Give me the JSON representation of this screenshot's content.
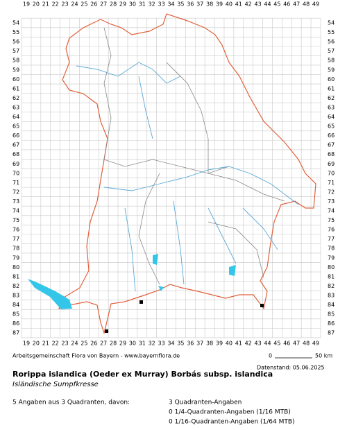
{
  "map": {
    "columns": [
      19,
      20,
      21,
      22,
      23,
      24,
      25,
      26,
      27,
      28,
      29,
      30,
      31,
      32,
      33,
      34,
      35,
      36,
      37,
      38,
      39,
      40,
      41,
      42,
      43,
      44,
      45,
      46,
      47,
      48,
      49
    ],
    "rows": [
      54,
      55,
      56,
      57,
      58,
      59,
      60,
      61,
      62,
      63,
      64,
      65,
      66,
      67,
      68,
      69,
      70,
      71,
      72,
      73,
      74,
      75,
      76,
      77,
      78,
      79,
      80,
      81,
      82,
      83,
      84,
      85,
      86,
      87
    ],
    "credit": "Arbeitsgemeinschaft Flora von Bayern - www.bayernflora.de",
    "scale_start": "0",
    "scale_end": "50 km",
    "data_date": "Datenstand: 05.06.2025"
  },
  "species": {
    "name": "Rorippa islandica (Oeder ex Murray) Borbás subsp. islandica",
    "common_name": "Isländische Sumpfkresse"
  },
  "stats": {
    "summary": "5 Angaben aus 3 Quadranten, davon:",
    "lines": [
      "3 Quadranten-Angaben",
      "0 1/4-Quadranten-Angaben (1/16 MTB)",
      "0 1/16-Quadranten-Angaben (1/64 MTB)"
    ]
  }
}
